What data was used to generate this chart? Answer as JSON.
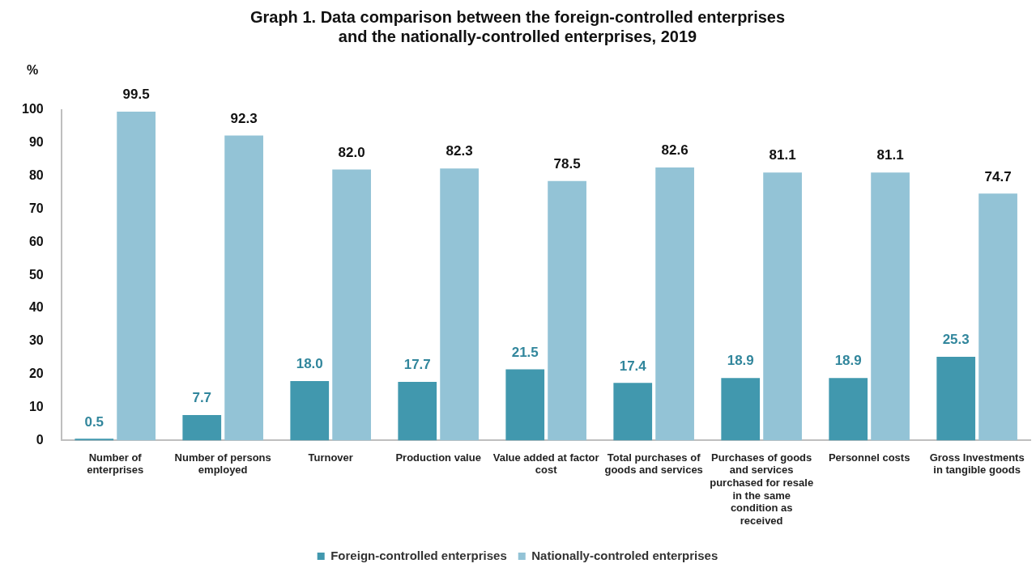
{
  "chart_data": {
    "type": "bar",
    "title": "Graph 1. Data comparison between the foreign-controlled enterprises and the nationally-controlled enterprises, 2019",
    "ylabel": "%",
    "categories": [
      "Number of enterprises",
      "Number of persons employed",
      "Turnover",
      "Production value",
      "Value added at factor cost",
      "Total purchases of goods and services",
      "Purchases of goods and services purchased for resale in the same condition as received",
      "Personnel costs",
      "Gross Investments in tangible goods"
    ],
    "series": [
      {
        "name": "Foreign-controlled enterprises",
        "color": "#4198ae",
        "values": [
          0.5,
          7.7,
          18.0,
          17.7,
          21.5,
          17.4,
          18.9,
          18.9,
          25.3
        ],
        "value_labels": [
          "0.5",
          "7.7",
          "18.0",
          "17.7",
          "21.5",
          "17.4",
          "18.9",
          "18.9",
          "25.3"
        ]
      },
      {
        "name": "Nationally-controled enterprises",
        "color": "#93c3d6",
        "values": [
          99.5,
          92.3,
          82.0,
          82.3,
          78.5,
          82.6,
          81.1,
          81.1,
          74.7
        ],
        "value_labels": [
          "99.5",
          "92.3",
          "82.0",
          "82.3",
          "78.5",
          "82.6",
          "81.1",
          "81.1",
          "74.7"
        ]
      }
    ],
    "ylim": [
      0,
      100
    ],
    "yticks": [
      0,
      10,
      20,
      30,
      40,
      50,
      60,
      70,
      80,
      90,
      100
    ],
    "grid": false,
    "legend": "bottom"
  }
}
